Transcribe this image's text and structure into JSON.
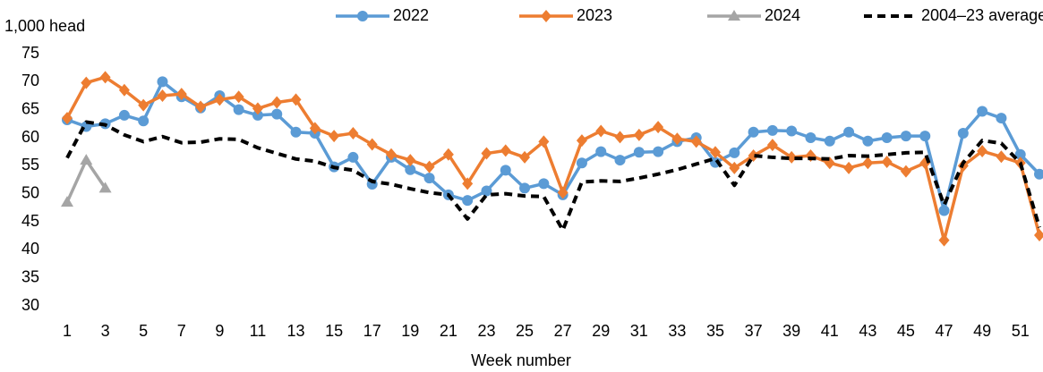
{
  "chart_data": {
    "type": "line",
    "y_label": "1,000 head",
    "x_label": "Week number",
    "x": [
      1,
      2,
      3,
      4,
      5,
      6,
      7,
      8,
      9,
      10,
      11,
      12,
      13,
      14,
      15,
      16,
      17,
      18,
      19,
      20,
      21,
      22,
      23,
      24,
      25,
      26,
      27,
      28,
      29,
      30,
      31,
      32,
      33,
      34,
      35,
      36,
      37,
      38,
      39,
      40,
      41,
      42,
      43,
      44,
      45,
      46,
      47,
      48,
      49,
      50,
      51,
      52
    ],
    "xlim": [
      1,
      52
    ],
    "xticks": [
      1,
      3,
      5,
      7,
      9,
      11,
      13,
      15,
      17,
      19,
      21,
      23,
      25,
      27,
      29,
      31,
      33,
      35,
      37,
      39,
      41,
      43,
      45,
      47,
      49,
      51
    ],
    "ylim": [
      30,
      75
    ],
    "yticks": [
      30,
      35,
      40,
      45,
      50,
      55,
      60,
      65,
      70,
      75
    ],
    "series": [
      {
        "name": "2022",
        "color": "#5b9bd5",
        "marker": "circle",
        "dashed": false,
        "values": [
          63.2,
          62,
          62.5,
          64,
          63,
          70,
          67.3,
          65.3,
          67.5,
          65,
          64,
          64.2,
          61,
          60.8,
          54.8,
          56.5,
          51.7,
          56.5,
          54.3,
          52.8,
          49.8,
          48.8,
          50.5,
          54.2,
          51,
          51.8,
          49.8,
          55.5,
          57.5,
          56,
          57.4,
          57.5,
          59.3,
          60,
          55.6,
          57.3,
          61,
          61.3,
          61.2,
          60,
          59.4,
          61,
          59.4,
          60,
          60.3,
          60.3,
          47,
          60.8,
          64.7,
          63.5,
          57,
          53.5
        ]
      },
      {
        "name": "2023",
        "color": "#ed7d31",
        "marker": "diamond",
        "dashed": false,
        "values": [
          63.5,
          69.8,
          70.8,
          68.5,
          65.8,
          67.5,
          67.8,
          65.5,
          66.8,
          67.3,
          65.2,
          66.3,
          66.8,
          61.7,
          60.3,
          60.8,
          58.8,
          57,
          56,
          54.8,
          57,
          51.8,
          57.2,
          57.7,
          56.5,
          59.3,
          50.2,
          59.5,
          61.2,
          60.1,
          60.5,
          61.9,
          59.8,
          59.3,
          57.4,
          54.6,
          56.8,
          58.7,
          56.5,
          56.8,
          55.5,
          54.6,
          55.5,
          55.7,
          54,
          55.5,
          41.7,
          55,
          57.6,
          56.6,
          55.5,
          42.6
        ]
      },
      {
        "name": "2024",
        "color": "#a5a5a5",
        "marker": "triangle",
        "dashed": false,
        "values": [
          48.5,
          56,
          51,
          null,
          null,
          null,
          null,
          null,
          null,
          null,
          null,
          null,
          null,
          null,
          null,
          null,
          null,
          null,
          null,
          null,
          null,
          null,
          null,
          null,
          null,
          null,
          null,
          null,
          null,
          null,
          null,
          null,
          null,
          null,
          null,
          null,
          null,
          null,
          null,
          null,
          null,
          null,
          null,
          null,
          null,
          null,
          null,
          null,
          null,
          null,
          null,
          null
        ]
      },
      {
        "name": "2004–23 average",
        "color": "#000000",
        "marker": "none",
        "dashed": true,
        "values": [
          56.4,
          62.8,
          62.3,
          60.5,
          59.3,
          60.2,
          59.1,
          59.2,
          59.8,
          59.7,
          58.2,
          57.2,
          56.2,
          55.8,
          54.7,
          54.2,
          52.2,
          51.7,
          50.9,
          50.2,
          49.8,
          45.5,
          49.8,
          50,
          49.6,
          49.5,
          43.5,
          52.1,
          52.3,
          52.2,
          52.8,
          53.5,
          54.3,
          55.3,
          56.3,
          51.5,
          56.8,
          56.5,
          56.3,
          56.3,
          56.2,
          56.8,
          56.7,
          57,
          57.3,
          57.4,
          48,
          55.5,
          59.5,
          59,
          55.5,
          44
        ]
      }
    ]
  }
}
